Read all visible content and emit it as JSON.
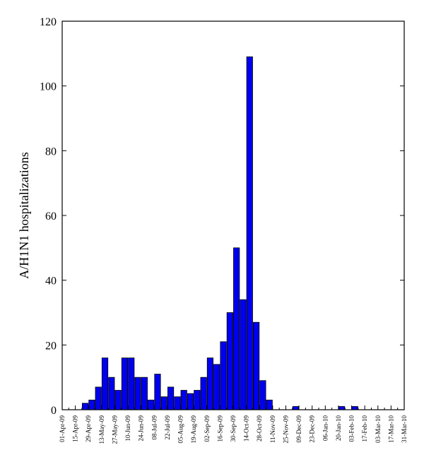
{
  "chart_data": {
    "type": "bar",
    "title": "",
    "xlabel": "",
    "ylabel": "A/H1N1 hospitalizations",
    "ylim": [
      0,
      120
    ],
    "yticks": [
      0,
      20,
      40,
      60,
      80,
      100,
      120
    ],
    "grid": false,
    "legend": "none",
    "bar_color": "#0000ee",
    "x_tick_labels": [
      "01-Apr-09",
      "15-Apr-09",
      "29-Apr-09",
      "13-May-09",
      "27-May-09",
      "10-Jun-09",
      "24-Jun-09",
      "08-Jul-09",
      "22-Jul-09",
      "05-Aug-09",
      "19-Aug-09",
      "02-Sep-09",
      "16-Sep-09",
      "30-Sep-09",
      "14-Oct-09",
      "28-Oct-09",
      "11-Nov-09",
      "25-Nov-09",
      "09-Dec-09",
      "23-Dec-09",
      "06-Jan-10",
      "20-Jan-10",
      "03-Feb-10",
      "17-Feb-10",
      "03-Mar-10",
      "17-Mar-10",
      "31-Mar-10"
    ],
    "values": [
      0,
      0,
      0,
      2,
      3,
      7,
      16,
      10,
      6,
      16,
      16,
      10,
      10,
      3,
      11,
      4,
      7,
      4,
      6,
      5,
      6,
      10,
      16,
      14,
      21,
      30,
      50,
      34,
      109,
      27,
      9,
      3,
      0,
      0,
      0,
      1,
      0,
      0,
      0,
      0,
      0,
      0,
      1,
      0,
      1,
      0,
      0,
      0,
      0,
      0,
      0,
      0
    ]
  }
}
